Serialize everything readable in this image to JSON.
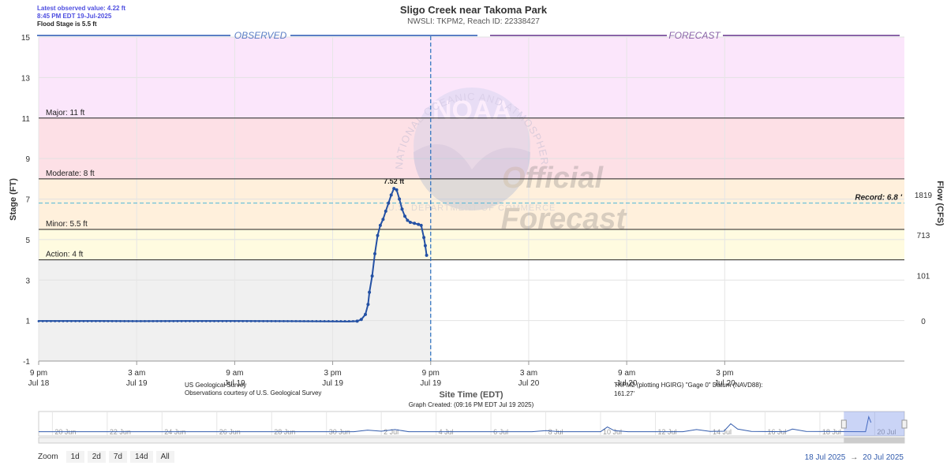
{
  "header": {
    "latest_value": "Latest observed value: 4.22 ft",
    "latest_time": "8:45 PM EDT 19-Jul-2025",
    "flood_stage": "Flood Stage is 5.5 ft",
    "title": "Sligo Creek near Takoma Park",
    "subtitle": "NWSLI: TKPM2, Reach ID: 22338427"
  },
  "colors": {
    "major": "#fde0e6",
    "moderate": "#fff0dc",
    "minor": "#fffbe0",
    "record_band": "#fbe6fb",
    "below_action": "#f0f0f0",
    "series": "#2451a4",
    "observed_bar": "#5b7ec5",
    "forecast_bar": "#8a63a8",
    "record_line": "#4fb6d8"
  },
  "chart_data": {
    "type": "line",
    "title": "Sligo Creek near Takoma Park",
    "xlabel": "Site Time (EDT)",
    "ylabel": "Stage (FT)",
    "y2label": "Flow (CFS)",
    "ylim": [
      -1,
      15
    ],
    "yticks": [
      "-1",
      "1",
      "3",
      "5",
      "7",
      "9",
      "11",
      "13",
      "15"
    ],
    "x_range": [
      "2025-07-18 21:00",
      "2025-07-21 02:00"
    ],
    "x_ticks": [
      {
        "time": "2025-07-18 21:00",
        "line1": "9 pm",
        "line2": "Jul 18"
      },
      {
        "time": "2025-07-19 03:00",
        "line1": "3 am",
        "line2": "Jul 19"
      },
      {
        "time": "2025-07-19 09:00",
        "line1": "9 am",
        "line2": "Jul 19"
      },
      {
        "time": "2025-07-19 15:00",
        "line1": "3 pm",
        "line2": "Jul 19"
      },
      {
        "time": "2025-07-19 21:00",
        "line1": "9 pm",
        "line2": "Jul 19"
      },
      {
        "time": "2025-07-20 03:00",
        "line1": "3 am",
        "line2": "Jul 20"
      },
      {
        "time": "2025-07-20 09:00",
        "line1": "9 am",
        "line2": "Jul 20"
      },
      {
        "time": "2025-07-20 15:00",
        "line1": "3 pm",
        "line2": "Jul 20"
      }
    ],
    "flow_ticks": [
      {
        "stage": 0.98,
        "label": "0"
      },
      {
        "stage": 3.22,
        "label": "101"
      },
      {
        "stage": 5.22,
        "label": "713"
      },
      {
        "stage": 7.22,
        "label": "1819"
      }
    ],
    "thresholds": [
      {
        "name": "action",
        "label": "Action: 4 ft",
        "stage": 4
      },
      {
        "name": "minor",
        "label": "Minor: 5.5 ft",
        "stage": 5.5
      },
      {
        "name": "moderate",
        "label": "Moderate: 8 ft",
        "stage": 8
      },
      {
        "name": "major",
        "label": "Major: 11 ft",
        "stage": 11
      }
    ],
    "record": {
      "label": "Record: 6.8 '",
      "stage": 6.8
    },
    "peak": {
      "label": "7.52 ft",
      "time": "2025-07-19 18:45",
      "stage": 7.52
    },
    "current_time": "2025-07-19 21:00",
    "observed_label": "OBSERVED",
    "forecast_label": "FORECAST",
    "series": [
      {
        "points": [
          [
            "2025-07-18 21:00",
            0.98
          ],
          [
            "2025-07-19 00:00",
            0.98
          ],
          [
            "2025-07-19 03:00",
            0.97
          ],
          [
            "2025-07-19 06:00",
            0.98
          ],
          [
            "2025-07-19 09:00",
            0.98
          ],
          [
            "2025-07-19 12:00",
            0.97
          ],
          [
            "2025-07-19 15:00",
            0.96
          ],
          [
            "2025-07-19 16:00",
            0.95
          ],
          [
            "2025-07-19 16:30",
            0.97
          ],
          [
            "2025-07-19 16:45",
            1.05
          ],
          [
            "2025-07-19 17:00",
            1.3
          ],
          [
            "2025-07-19 17:10",
            1.8
          ],
          [
            "2025-07-19 17:15",
            2.4
          ],
          [
            "2025-07-19 17:25",
            3.2
          ],
          [
            "2025-07-19 17:35",
            4.3
          ],
          [
            "2025-07-19 17:45",
            5.2
          ],
          [
            "2025-07-19 17:55",
            5.7
          ],
          [
            "2025-07-19 18:05",
            6.0
          ],
          [
            "2025-07-19 18:15",
            6.4
          ],
          [
            "2025-07-19 18:25",
            6.8
          ],
          [
            "2025-07-19 18:35",
            7.2
          ],
          [
            "2025-07-19 18:45",
            7.52
          ],
          [
            "2025-07-19 18:55",
            7.45
          ],
          [
            "2025-07-19 19:05",
            7.0
          ],
          [
            "2025-07-19 19:15",
            6.5
          ],
          [
            "2025-07-19 19:25",
            6.15
          ],
          [
            "2025-07-19 19:35",
            5.95
          ],
          [
            "2025-07-19 19:45",
            5.85
          ],
          [
            "2025-07-19 20:00",
            5.8
          ],
          [
            "2025-07-19 20:15",
            5.75
          ],
          [
            "2025-07-19 20:25",
            5.7
          ],
          [
            "2025-07-19 20:35",
            5.1
          ],
          [
            "2025-07-19 20:40",
            4.7
          ],
          [
            "2025-07-19 20:45",
            4.22
          ]
        ]
      }
    ]
  },
  "watermark": {
    "noaa": "NOAA",
    "official": "Official",
    "forecast": "Forecast",
    "ring_text": "NATIONAL OCEANIC AND ATMOSPHERIC ADMINISTRATION",
    "ring_bottom": "U.S. DEPARTMENT OF COMMERCE"
  },
  "credits": {
    "usgs_line1": "US Geological Survey",
    "usgs_line2": "Observations courtesy of U.S. Geological Survey",
    "site_time": "Site Time (EDT)",
    "graph_created": "Graph Created: (09:16 PM EDT Jul 19 2025)",
    "datum_line1": "TKPM2 (plotting HGIRG) \"Gage 0\" Datum (NAVD88):",
    "datum_line2": "161.27'"
  },
  "navigator": {
    "labels": [
      {
        "date": "2025-06-20",
        "text": "20 Jun"
      },
      {
        "date": "2025-06-22",
        "text": "22 Jun"
      },
      {
        "date": "2025-06-24",
        "text": "24 Jun"
      },
      {
        "date": "2025-06-26",
        "text": "26 Jun"
      },
      {
        "date": "2025-06-28",
        "text": "28 Jun"
      },
      {
        "date": "2025-06-30",
        "text": "30 Jun"
      },
      {
        "date": "2025-07-02",
        "text": "2 Jul"
      },
      {
        "date": "2025-07-04",
        "text": "4 Jul"
      },
      {
        "date": "2025-07-06",
        "text": "6 Jul"
      },
      {
        "date": "2025-07-08",
        "text": "8 Jul"
      },
      {
        "date": "2025-07-10",
        "text": "10 Jul"
      },
      {
        "date": "2025-07-12",
        "text": "12 Jul"
      },
      {
        "date": "2025-07-14",
        "text": "14 Jul"
      },
      {
        "date": "2025-07-16",
        "text": "16 Jul"
      },
      {
        "date": "2025-07-18",
        "text": "18 Jul"
      },
      {
        "date": "2025-07-20",
        "text": "20 Jul"
      }
    ],
    "range": [
      "2025-06-19 12:00",
      "2025-07-21 02:00"
    ],
    "selected": [
      "2025-07-18 21:00",
      "2025-07-21 02:00"
    ],
    "points": [
      [
        "2025-06-19 12:00",
        1.0
      ],
      [
        "2025-06-26 00:00",
        1.0
      ],
      [
        "2025-07-01 00:00",
        1.0
      ],
      [
        "2025-07-01 12:00",
        1.3
      ],
      [
        "2025-07-02 00:00",
        1.1
      ],
      [
        "2025-07-02 12:00",
        1.4
      ],
      [
        "2025-07-03 00:00",
        1.0
      ],
      [
        "2025-07-07 12:00",
        1.0
      ],
      [
        "2025-07-08 00:00",
        1.2
      ],
      [
        "2025-07-08 12:00",
        1.0
      ],
      [
        "2025-07-10 00:00",
        1.0
      ],
      [
        "2025-07-10 06:00",
        1.9
      ],
      [
        "2025-07-10 12:00",
        1.2
      ],
      [
        "2025-07-11 00:00",
        1.0
      ],
      [
        "2025-07-13 00:00",
        1.0
      ],
      [
        "2025-07-13 12:00",
        1.4
      ],
      [
        "2025-07-14 00:00",
        1.05
      ],
      [
        "2025-07-14 12:00",
        1.1
      ],
      [
        "2025-07-14 18:00",
        2.5
      ],
      [
        "2025-07-15 00:00",
        1.5
      ],
      [
        "2025-07-15 12:00",
        1.05
      ],
      [
        "2025-07-16 18:00",
        1.0
      ],
      [
        "2025-07-17 00:00",
        1.5
      ],
      [
        "2025-07-17 12:00",
        1.05
      ],
      [
        "2025-07-19 16:00",
        1.0
      ],
      [
        "2025-07-19 18:45",
        3.8
      ],
      [
        "2025-07-19 20:45",
        2.7
      ]
    ]
  },
  "zoom": {
    "label": "Zoom",
    "buttons": [
      "1d",
      "2d",
      "7d",
      "14d",
      "All"
    ]
  },
  "range_display": {
    "from": "18 Jul 2025",
    "arrow": "→",
    "to": "20 Jul 2025"
  }
}
